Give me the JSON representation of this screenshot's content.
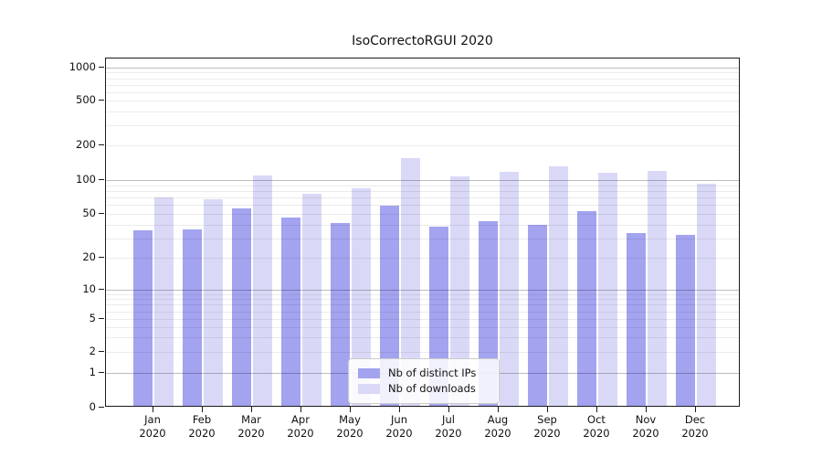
{
  "title": "IsoCorrectoRGUI 2020",
  "legend": {
    "items": [
      {
        "label": "Nb of distinct IPs",
        "color": "#a3a3f0"
      },
      {
        "label": "Nb of downloads",
        "color": "#d9d9f7"
      }
    ]
  },
  "y_axis": {
    "tick_labels": [
      "1000",
      "500",
      "200",
      "100",
      "50",
      "20",
      "10",
      "5",
      "2",
      "1",
      "0"
    ]
  },
  "x_axis": {
    "year": "2020",
    "months": [
      "Jan",
      "Feb",
      "Mar",
      "Apr",
      "May",
      "Jun",
      "Jul",
      "Aug",
      "Sep",
      "Oct",
      "Nov",
      "Dec"
    ]
  },
  "chart_data": {
    "type": "bar",
    "categories": [
      "Jan 2020",
      "Feb 2020",
      "Mar 2020",
      "Apr 2020",
      "May 2020",
      "Jun 2020",
      "Jul 2020",
      "Aug 2020",
      "Sep 2020",
      "Oct 2020",
      "Nov 2020",
      "Dec 2020"
    ],
    "series": [
      {
        "name": "Nb of distinct IPs",
        "color": "#a3a3f0",
        "values": [
          34,
          35,
          54,
          45,
          40,
          57,
          37,
          41,
          38,
          51,
          32,
          31
        ]
      },
      {
        "name": "Nb of downloads",
        "color": "#d9d9f7",
        "values": [
          68,
          65,
          105,
          73,
          81,
          150,
          103,
          114,
          127,
          112,
          116,
          89
        ]
      }
    ],
    "title": "IsoCorrectoRGUI 2020",
    "xlabel": "",
    "ylabel": "",
    "yscale": "log-with-zero (symlog-like)",
    "ylim": [
      0,
      1200
    ],
    "yticks": [
      1000,
      500,
      200,
      100,
      50,
      20,
      10,
      5,
      2,
      1,
      0
    ],
    "grid": "horizontal major+minor, drawn above bars",
    "legend_position": "lower center"
  }
}
